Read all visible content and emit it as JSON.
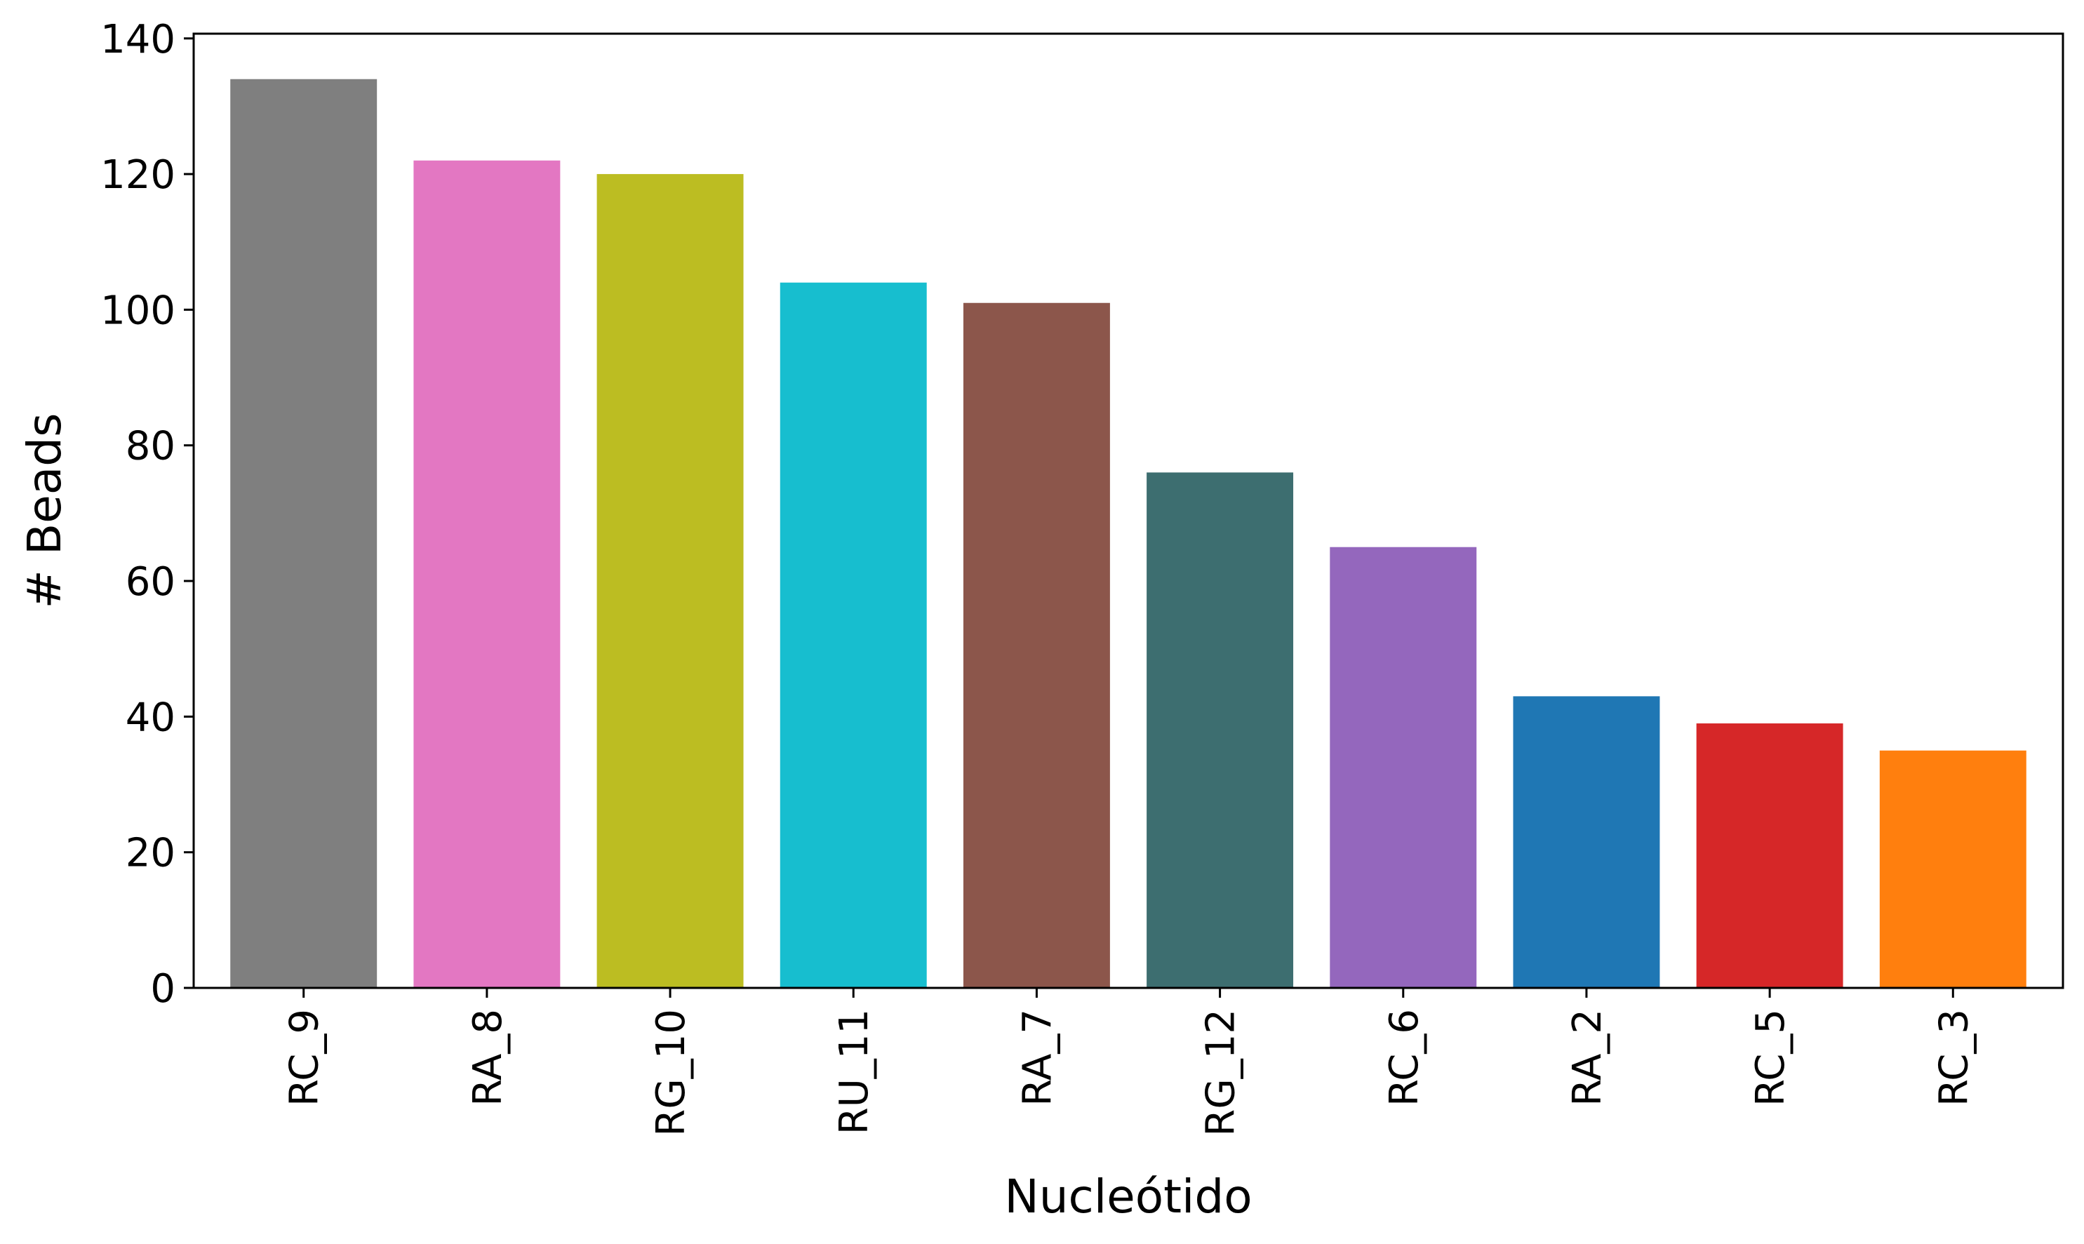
{
  "chart_data": {
    "type": "bar",
    "title": "",
    "xlabel": "Nucleótido",
    "ylabel": "# Beads",
    "categories": [
      "RC_9",
      "RA_8",
      "RG_10",
      "RU_11",
      "RA_7",
      "RG_12",
      "RC_6",
      "RA_2",
      "RC_5",
      "RC_3"
    ],
    "values": [
      134,
      122,
      120,
      104,
      101,
      76,
      65,
      43,
      39,
      35
    ],
    "colors": [
      "#7f7f7f",
      "#e377c2",
      "#bcbd22",
      "#17becf",
      "#8c564b",
      "#3d6e70",
      "#9467bd",
      "#1f77b4",
      "#d62728",
      "#ff7f0e"
    ],
    "ylim": [
      0,
      140.7
    ],
    "yticks": [
      0,
      20,
      40,
      60,
      80,
      100,
      120,
      140
    ],
    "grid": false,
    "legend": "none"
  }
}
